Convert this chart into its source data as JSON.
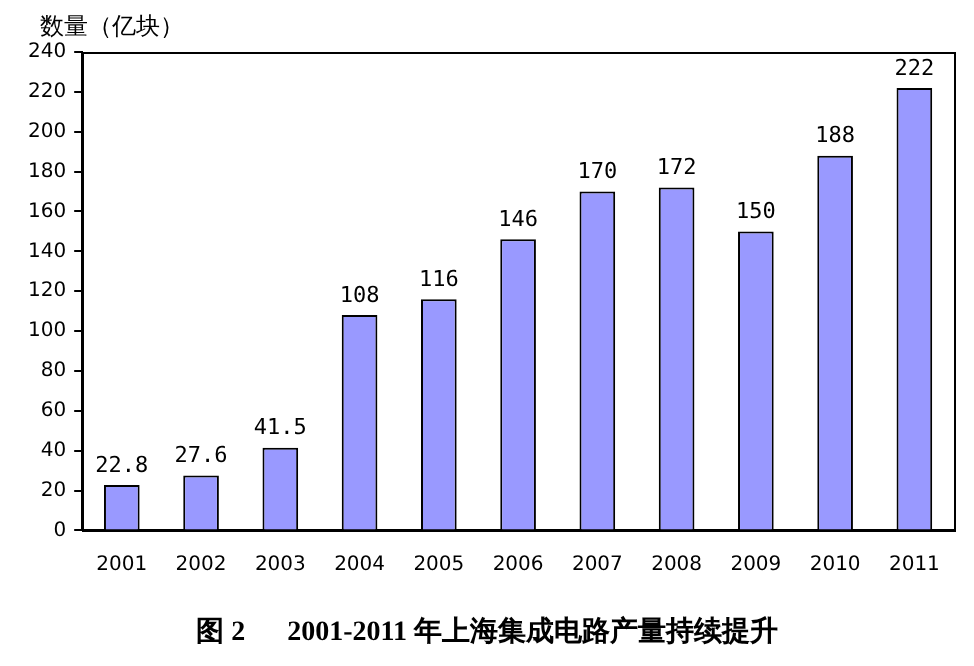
{
  "chart_data": {
    "type": "bar",
    "title": "图 2      2001-2011 年上海集成电路产量持续提升",
    "ylabel": "数量（亿块）",
    "categories": [
      "2001",
      "2002",
      "2003",
      "2004",
      "2005",
      "2006",
      "2007",
      "2008",
      "2009",
      "2010",
      "2011"
    ],
    "values": [
      22.8,
      27.6,
      41.5,
      108,
      116,
      146,
      170,
      172,
      150,
      188,
      222
    ],
    "value_labels": [
      "22.8",
      "27.6",
      "41.5",
      "108",
      "116",
      "146",
      "170",
      "172",
      "150",
      "188",
      "222"
    ],
    "color": "#9999ff",
    "ylim": [
      0,
      240
    ],
    "yticks": [
      0,
      20,
      40,
      60,
      80,
      100,
      120,
      140,
      160,
      180,
      200,
      220,
      240
    ],
    "grid": false,
    "legend": false
  }
}
